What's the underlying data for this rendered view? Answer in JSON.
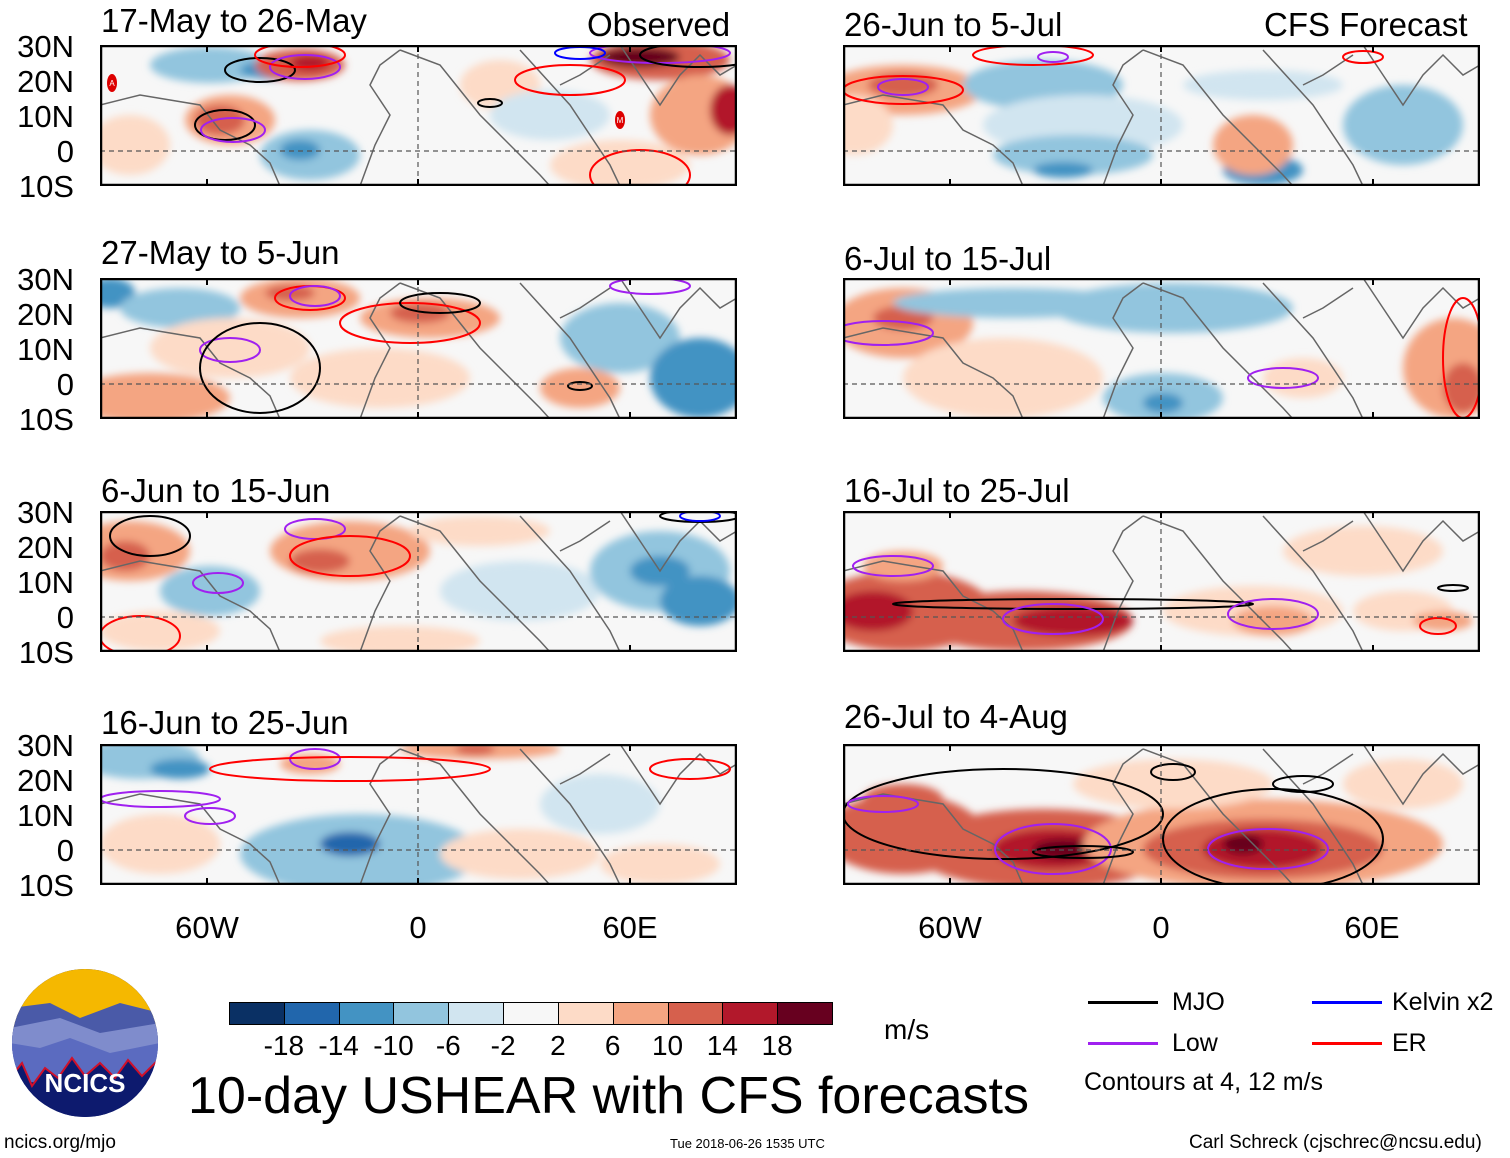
{
  "labels": {
    "observed": "Observed",
    "forecast": "CFS Forecast"
  },
  "lat_ticks": [
    "30N",
    "20N",
    "10N",
    "0",
    "10S"
  ],
  "lon_ticks": [
    "60W",
    "0",
    "60E"
  ],
  "panels": [
    {
      "title": "17-May to 26-May",
      "group": "observed"
    },
    {
      "title": "27-May to 5-Jun",
      "group": "observed"
    },
    {
      "title": "6-Jun to 15-Jun",
      "group": "observed"
    },
    {
      "title": "16-Jun to 25-Jun",
      "group": "observed"
    },
    {
      "title": "26-Jun to 5-Jul",
      "group": "forecast"
    },
    {
      "title": "6-Jul to 15-Jul",
      "group": "forecast"
    },
    {
      "title": "16-Jul to 25-Jul",
      "group": "forecast"
    },
    {
      "title": "26-Jul to 4-Aug",
      "group": "forecast"
    }
  ],
  "storm_markers": [
    "A",
    "M"
  ],
  "chart_data": {
    "type": "heatmap",
    "title": "10-day USHEAR with CFS forecasts",
    "variable": "USHEAR",
    "units": "m/s",
    "lat_range": [
      "10S",
      "30N"
    ],
    "lon_ticks": [
      "60W",
      "0",
      "60E"
    ],
    "colorbar": {
      "ticks": [
        "-18",
        "-14",
        "-10",
        "-6",
        "-2",
        "2",
        "6",
        "10",
        "14",
        "18"
      ],
      "colors": [
        "#0a3064",
        "#2166ac",
        "#4393c3",
        "#92c5de",
        "#d1e5f0",
        "#f7f7f7",
        "#fddbc7",
        "#f4a582",
        "#d6604d",
        "#b2182b",
        "#67001f"
      ]
    },
    "legend": [
      {
        "name": "MJO",
        "color": "#000000"
      },
      {
        "name": "Kelvin x2",
        "color": "#0000ff"
      },
      {
        "name": "Low",
        "color": "#a020f0"
      },
      {
        "name": "ER",
        "color": "#ff0000"
      }
    ],
    "contour_note": "Contours at 4, 12 m/s"
  },
  "footer": {
    "site": "ncics.org/mjo",
    "timestamp": "Tue 2018-06-26 1535 UTC",
    "author": "Carl Schreck (cjschrec@ncsu.edu)",
    "logo_text": "NCICS"
  }
}
